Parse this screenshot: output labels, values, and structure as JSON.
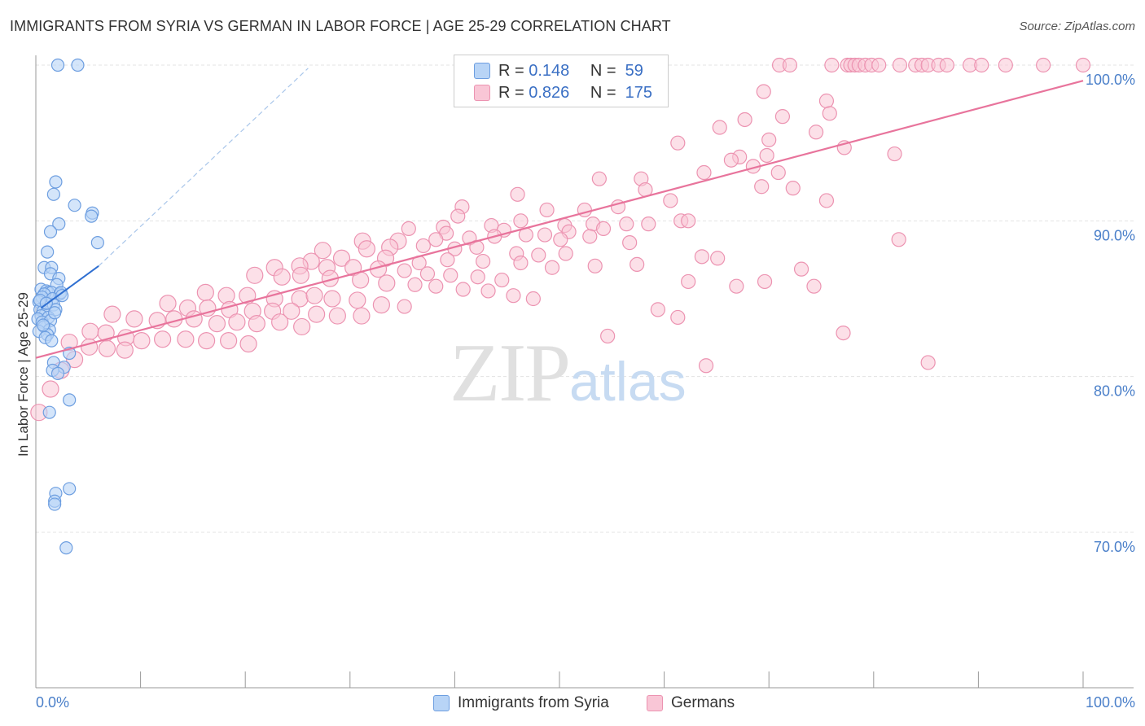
{
  "header": {
    "title": "IMMIGRANTS FROM SYRIA VS GERMAN IN LABOR FORCE | AGE 25-29 CORRELATION CHART",
    "source": "Source: ZipAtlas.com"
  },
  "legend": {
    "series1": {
      "r_label": "R =",
      "r_value": "0.148",
      "n_label": "N =",
      "n_value": "59"
    },
    "series2": {
      "r_label": "R =",
      "r_value": "0.826",
      "n_label": "N =",
      "n_value": "175"
    }
  },
  "watermark": {
    "zip": "ZIP",
    "atlas": "atlas"
  },
  "colors": {
    "syria_fill": "#b8d4f6",
    "syria_stroke": "#6d9ee0",
    "syria_line": "#2f6fd1",
    "german_fill": "#f9c6d6",
    "german_stroke": "#ec93b1",
    "german_line": "#e8749c",
    "grid": "#e3e3e3",
    "tick_text": "#4a7fc9"
  },
  "chart_data": {
    "type": "scatter",
    "title": "IMMIGRANTS FROM SYRIA VS GERMAN IN LABOR FORCE | AGE 25-29 CORRELATION CHART",
    "xlabel": "",
    "ylabel": "In Labor Force | Age 25-29",
    "xlim": [
      0,
      100
    ],
    "ylim": [
      60,
      100
    ],
    "x_tick_labels": [
      "0.0%",
      "100.0%"
    ],
    "y_ticks": [
      70,
      80,
      90,
      100
    ],
    "y_tick_labels": [
      "70.0%",
      "80.0%",
      "90.0%",
      "100.0%"
    ],
    "grid": true,
    "legend_position": "bottom",
    "series": [
      {
        "name": "Immigrants from Syria",
        "R": 0.148,
        "N": 59,
        "trend": {
          "x": [
            0.5,
            6.0
          ],
          "y": [
            84.4,
            87.1
          ]
        },
        "trend_extension": {
          "x": [
            6.0,
            26.0
          ],
          "y": [
            87.1,
            99.8
          ]
        },
        "points": [
          [
            2.1,
            100
          ],
          [
            4.0,
            100
          ],
          [
            1.9,
            92.5
          ],
          [
            1.7,
            91.7
          ],
          [
            3.7,
            91.0
          ],
          [
            5.4,
            90.5
          ],
          [
            5.3,
            90.3
          ],
          [
            2.2,
            89.8
          ],
          [
            1.4,
            89.3
          ],
          [
            5.9,
            88.6
          ],
          [
            1.1,
            88.0
          ],
          [
            0.8,
            87.0
          ],
          [
            1.5,
            87.0
          ],
          [
            1.4,
            86.6
          ],
          [
            2.2,
            86.3
          ],
          [
            2.0,
            85.9
          ],
          [
            0.5,
            85.6
          ],
          [
            1.0,
            85.5
          ],
          [
            1.2,
            85.4
          ],
          [
            1.5,
            85.4
          ],
          [
            0.8,
            85.3
          ],
          [
            2.3,
            85.3
          ],
          [
            2.4,
            85.4
          ],
          [
            0.6,
            85.1
          ],
          [
            1.6,
            85.0
          ],
          [
            0.3,
            84.8
          ],
          [
            1.7,
            84.6
          ],
          [
            0.4,
            84.3
          ],
          [
            0.7,
            84.2
          ],
          [
            1.9,
            84.3
          ],
          [
            0.9,
            84.0
          ],
          [
            0.5,
            83.9
          ],
          [
            0.2,
            83.7
          ],
          [
            1.2,
            83.8
          ],
          [
            0.6,
            83.5
          ],
          [
            1.4,
            83.6
          ],
          [
            0.8,
            83.2
          ],
          [
            1.3,
            83.0
          ],
          [
            0.3,
            82.9
          ],
          [
            1.1,
            82.7
          ],
          [
            0.9,
            82.5
          ],
          [
            1.5,
            82.3
          ],
          [
            1.7,
            80.9
          ],
          [
            2.7,
            80.6
          ],
          [
            1.6,
            80.4
          ],
          [
            2.1,
            80.2
          ],
          [
            3.2,
            81.5
          ],
          [
            3.2,
            78.5
          ],
          [
            1.3,
            77.7
          ],
          [
            3.2,
            72.8
          ],
          [
            1.9,
            72.5
          ],
          [
            1.8,
            72.0
          ],
          [
            1.8,
            71.8
          ],
          [
            2.9,
            69.0
          ],
          [
            0.4,
            84.9
          ],
          [
            1.0,
            84.7
          ],
          [
            2.5,
            85.2
          ],
          [
            0.7,
            83.3
          ],
          [
            1.8,
            84.1
          ]
        ]
      },
      {
        "name": "Germans",
        "R": 0.826,
        "N": 175,
        "trend": {
          "x": [
            0,
            100
          ],
          "y": [
            81.2,
            99.0
          ]
        },
        "points": [
          [
            71,
            100
          ],
          [
            72,
            100
          ],
          [
            76,
            100
          ],
          [
            77.5,
            100
          ],
          [
            77.8,
            100
          ],
          [
            78.2,
            100
          ],
          [
            78.6,
            100
          ],
          [
            79.2,
            100
          ],
          [
            79.8,
            100
          ],
          [
            80.5,
            100
          ],
          [
            82.5,
            100
          ],
          [
            84,
            100
          ],
          [
            84.6,
            100
          ],
          [
            85.2,
            100
          ],
          [
            86.2,
            100
          ],
          [
            87,
            100
          ],
          [
            89.2,
            100
          ],
          [
            90.3,
            100
          ],
          [
            92.6,
            100
          ],
          [
            96.2,
            100
          ],
          [
            100,
            100
          ],
          [
            69.5,
            98.3
          ],
          [
            75.5,
            97.7
          ],
          [
            75.8,
            96.9
          ],
          [
            71.3,
            96.7
          ],
          [
            67.7,
            96.5
          ],
          [
            65.3,
            96.0
          ],
          [
            74.5,
            95.7
          ],
          [
            70,
            95.2
          ],
          [
            61.3,
            95.0
          ],
          [
            77.2,
            94.7
          ],
          [
            82,
            94.3
          ],
          [
            67.2,
            94.1
          ],
          [
            66.4,
            93.9
          ],
          [
            69.8,
            94.2
          ],
          [
            68.5,
            93.5
          ],
          [
            63.8,
            93.1
          ],
          [
            70.9,
            93.1
          ],
          [
            53.8,
            92.7
          ],
          [
            57.8,
            92.7
          ],
          [
            58.2,
            92.0
          ],
          [
            60.6,
            91.3
          ],
          [
            69.3,
            92.2
          ],
          [
            72.3,
            92.1
          ],
          [
            75.5,
            91.3
          ],
          [
            46,
            91.7
          ],
          [
            40.7,
            90.9
          ],
          [
            55.6,
            90.9
          ],
          [
            48.8,
            90.7
          ],
          [
            52.4,
            90.7
          ],
          [
            40.3,
            90.3
          ],
          [
            46.3,
            90.0
          ],
          [
            61.6,
            90.0
          ],
          [
            62.3,
            90.0
          ],
          [
            43.5,
            89.7
          ],
          [
            50.5,
            89.7
          ],
          [
            53.2,
            89.8
          ],
          [
            56.4,
            89.8
          ],
          [
            58.5,
            89.8
          ],
          [
            35.6,
            89.5
          ],
          [
            38.9,
            89.6
          ],
          [
            39.2,
            89.2
          ],
          [
            44.7,
            89.4
          ],
          [
            48.6,
            89.1
          ],
          [
            50.9,
            89.3
          ],
          [
            54.2,
            89.5
          ],
          [
            31.2,
            88.7
          ],
          [
            34.6,
            88.7
          ],
          [
            38.2,
            88.8
          ],
          [
            41.4,
            88.9
          ],
          [
            43.8,
            89.0
          ],
          [
            46.8,
            89.1
          ],
          [
            50.1,
            88.8
          ],
          [
            52.9,
            89.0
          ],
          [
            56.7,
            88.6
          ],
          [
            82.4,
            88.8
          ],
          [
            27.4,
            88.1
          ],
          [
            31.6,
            88.2
          ],
          [
            33.8,
            88.3
          ],
          [
            37.0,
            88.4
          ],
          [
            40.0,
            88.2
          ],
          [
            42.1,
            88.3
          ],
          [
            45.9,
            87.9
          ],
          [
            48.0,
            87.8
          ],
          [
            50.6,
            87.9
          ],
          [
            63.6,
            87.7
          ],
          [
            26.3,
            87.4
          ],
          [
            29.2,
            87.6
          ],
          [
            33.4,
            87.6
          ],
          [
            36.6,
            87.3
          ],
          [
            39.3,
            87.5
          ],
          [
            42.7,
            87.4
          ],
          [
            46.3,
            87.3
          ],
          [
            49.3,
            87.0
          ],
          [
            53.4,
            87.1
          ],
          [
            57.4,
            87.2
          ],
          [
            65.1,
            87.6
          ],
          [
            73.1,
            86.9
          ],
          [
            22.8,
            87.0
          ],
          [
            25.2,
            87.1
          ],
          [
            27.8,
            87.0
          ],
          [
            30.3,
            87.0
          ],
          [
            32.7,
            86.9
          ],
          [
            35.2,
            86.8
          ],
          [
            37.4,
            86.6
          ],
          [
            39.6,
            86.5
          ],
          [
            42.2,
            86.4
          ],
          [
            44.5,
            86.2
          ],
          [
            20.9,
            86.5
          ],
          [
            23.5,
            86.4
          ],
          [
            25.3,
            86.5
          ],
          [
            28.1,
            86.3
          ],
          [
            31.0,
            86.2
          ],
          [
            33.5,
            86.0
          ],
          [
            36.2,
            85.9
          ],
          [
            38.2,
            85.8
          ],
          [
            40.8,
            85.6
          ],
          [
            43.2,
            85.5
          ],
          [
            45.6,
            85.2
          ],
          [
            47.5,
            85.0
          ],
          [
            16.2,
            85.4
          ],
          [
            18.2,
            85.2
          ],
          [
            20.2,
            85.2
          ],
          [
            22.8,
            85.0
          ],
          [
            25.2,
            85.0
          ],
          [
            26.6,
            85.2
          ],
          [
            28.3,
            85.0
          ],
          [
            30.7,
            84.9
          ],
          [
            33.0,
            84.6
          ],
          [
            35.2,
            84.5
          ],
          [
            12.6,
            84.7
          ],
          [
            14.5,
            84.4
          ],
          [
            16.4,
            84.4
          ],
          [
            18.5,
            84.3
          ],
          [
            20.7,
            84.2
          ],
          [
            22.6,
            84.2
          ],
          [
            24.4,
            84.2
          ],
          [
            26.8,
            84.0
          ],
          [
            28.8,
            83.9
          ],
          [
            31.1,
            83.9
          ],
          [
            7.3,
            84.0
          ],
          [
            9.4,
            83.7
          ],
          [
            11.6,
            83.6
          ],
          [
            13.2,
            83.7
          ],
          [
            15.1,
            83.7
          ],
          [
            17.3,
            83.4
          ],
          [
            19.2,
            83.5
          ],
          [
            21.1,
            83.4
          ],
          [
            23.3,
            83.5
          ],
          [
            25.4,
            83.2
          ],
          [
            5.2,
            82.9
          ],
          [
            6.7,
            82.8
          ],
          [
            8.6,
            82.5
          ],
          [
            10.1,
            82.3
          ],
          [
            12.1,
            82.4
          ],
          [
            14.3,
            82.4
          ],
          [
            16.3,
            82.3
          ],
          [
            18.4,
            82.3
          ],
          [
            20.3,
            82.1
          ],
          [
            3.2,
            82.2
          ],
          [
            5.1,
            81.9
          ],
          [
            6.8,
            81.8
          ],
          [
            8.5,
            81.7
          ],
          [
            3.7,
            81.1
          ],
          [
            2.4,
            80.4
          ],
          [
            1.4,
            79.2
          ],
          [
            0.3,
            77.7
          ],
          [
            62.3,
            86.1
          ],
          [
            69.6,
            86.1
          ],
          [
            74.3,
            85.8
          ],
          [
            59.4,
            84.3
          ],
          [
            66.9,
            85.8
          ],
          [
            54.6,
            82.6
          ],
          [
            61.3,
            83.8
          ],
          [
            64.0,
            80.7
          ],
          [
            77.1,
            82.8
          ],
          [
            85.2,
            80.9
          ]
        ]
      }
    ]
  },
  "bottom_legend": {
    "series1_label": "Immigrants from Syria",
    "series2_label": "Germans"
  }
}
